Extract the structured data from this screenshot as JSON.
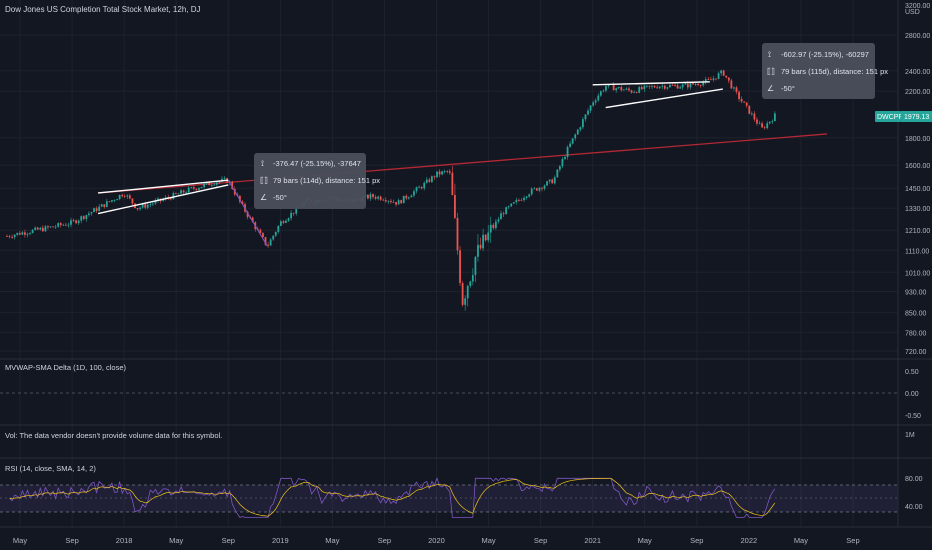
{
  "header": {
    "title": "Dow Jones US Completion Total Stock Market, 12h, DJ"
  },
  "price_scale": {
    "currency": "USD",
    "ticks": [
      "3200.00",
      "2800.00",
      "2400.00",
      "2200.00",
      "1800.00",
      "1600.00",
      "1450.00",
      "1330.00",
      "1210.00",
      "1110.00",
      "1010.00",
      "930.00",
      "850.00",
      "780.00",
      "720.00"
    ],
    "last_tag_symbol": "DWCPF",
    "last_tag_value": "1979.13"
  },
  "measurements": [
    {
      "line1": "-376.47 (-25.15%), -37647",
      "line2": "79 bars (114d), distance: 151 px",
      "line3": "-50°"
    },
    {
      "line1": "-602.97 (-25.15%), -60297",
      "line2": "79 bars (115d), distance: 151 px",
      "line3": "-50°"
    }
  ],
  "indicators": {
    "mvwap": {
      "label": "MVWAP-SMA Delta (1D, 100, close)",
      "ticks": [
        "0.50",
        "0.00",
        "-0.50"
      ]
    },
    "volume": {
      "label": "Vol: The data vendor doesn't provide volume data for this symbol.",
      "ticks": [
        "1M"
      ]
    },
    "rsi": {
      "label": "RSI (14, close, SMA, 14, 2)",
      "ticks": [
        "80.00",
        "40.00"
      ],
      "upper": 70,
      "lower": 30
    }
  },
  "time_axis": {
    "labels": [
      "May",
      "Sep",
      "2018",
      "May",
      "Sep",
      "2019",
      "May",
      "Sep",
      "2020",
      "May",
      "Sep",
      "2021",
      "May",
      "Sep",
      "2022",
      "May",
      "Sep"
    ]
  },
  "colors": {
    "background": "#131722",
    "up": "#26a69a",
    "down": "#ef5350",
    "trendline": "#b22833",
    "wedge": "#ffffff",
    "rsi_line": "#7e57c2",
    "rsi_ma": "#f0c419",
    "last_tag": "#26a69a"
  },
  "chart_data": {
    "type": "candlestick",
    "title": "Dow Jones US Completion Total Stock Market, 12h, DJ",
    "x_axis": "time",
    "y_axis_scale": "log",
    "ylim": [
      700,
      3200
    ],
    "price_path": [
      [
        "2017-04",
        1180
      ],
      [
        "2017-05",
        1195
      ],
      [
        "2017-07",
        1220
      ],
      [
        "2017-09",
        1250
      ],
      [
        "2017-11",
        1330
      ],
      [
        "2018-01",
        1420
      ],
      [
        "2018-02",
        1330
      ],
      [
        "2018-04",
        1380
      ],
      [
        "2018-06",
        1440
      ],
      [
        "2018-08",
        1490
      ],
      [
        "2018-09",
        1500
      ],
      [
        "2018-10",
        1350
      ],
      [
        "2018-12",
        1130
      ],
      [
        "2019-01",
        1250
      ],
      [
        "2019-03",
        1370
      ],
      [
        "2019-05",
        1390
      ],
      [
        "2019-06",
        1370
      ],
      [
        "2019-08",
        1400
      ],
      [
        "2019-09",
        1390
      ],
      [
        "2019-10",
        1360
      ],
      [
        "2019-12",
        1470
      ],
      [
        "2020-01",
        1540
      ],
      [
        "2020-02",
        1560
      ],
      [
        "2020-03",
        900
      ],
      [
        "2020-04",
        1080
      ],
      [
        "2020-06",
        1300
      ],
      [
        "2020-08",
        1420
      ],
      [
        "2020-10",
        1500
      ],
      [
        "2020-11",
        1700
      ],
      [
        "2021-01",
        2100
      ],
      [
        "2021-02",
        2250
      ],
      [
        "2021-04",
        2200
      ],
      [
        "2021-06",
        2250
      ],
      [
        "2021-08",
        2250
      ],
      [
        "2021-10",
        2300
      ],
      [
        "2021-11",
        2390
      ],
      [
        "2021-12",
        2180
      ],
      [
        "2022-01",
        2020
      ],
      [
        "2022-02",
        1870
      ],
      [
        "2022-03",
        1979.13
      ]
    ],
    "last_value": 1979.13,
    "drawings": [
      {
        "type": "trendline",
        "from": [
          "2017-11",
          1420
        ],
        "to": [
          "2022-07",
          1830
        ]
      },
      {
        "type": "rising_wedge",
        "upper": [
          [
            "2017-11",
            1420
          ],
          [
            "2018-09",
            1500
          ]
        ],
        "lower": [
          [
            "2017-11",
            1300
          ],
          [
            "2018-09",
            1470
          ]
        ]
      },
      {
        "type": "rising_wedge",
        "upper": [
          [
            "2021-01",
            2260
          ],
          [
            "2021-10",
            2290
          ]
        ],
        "lower": [
          [
            "2021-02",
            2050
          ],
          [
            "2021-11",
            2220
          ]
        ]
      }
    ]
  }
}
